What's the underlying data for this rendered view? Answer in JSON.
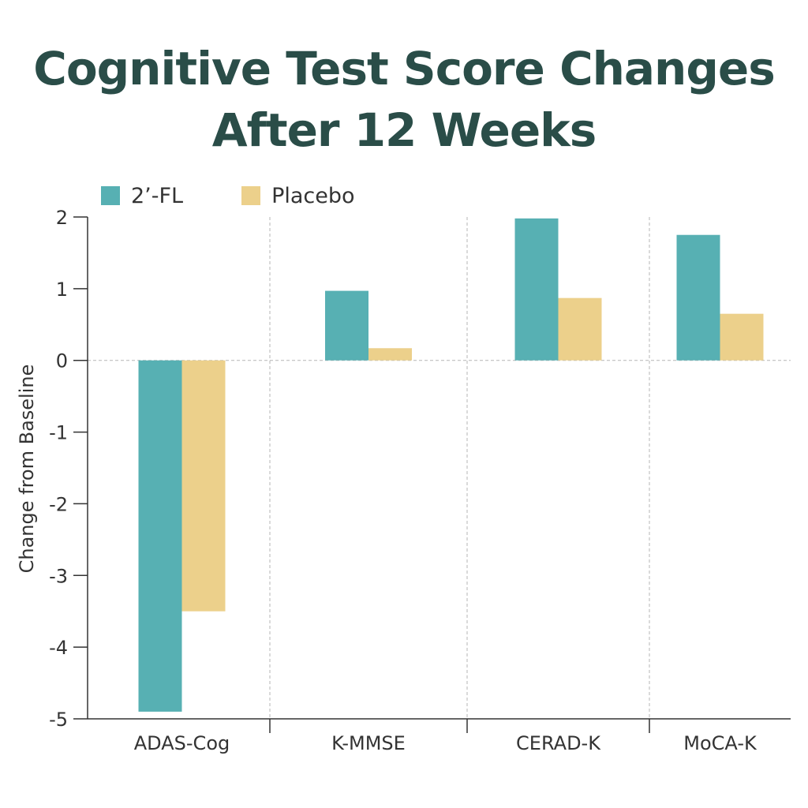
{
  "title_line1": "Cognitive Test Score Changes",
  "title_line2": "After 12 Weeks",
  "colors": {
    "title": "#2a4d48",
    "axis": "#333333",
    "grid": "#b5b5b5"
  },
  "chart_data": {
    "type": "bar",
    "categories": [
      "ADAS-Cog",
      "K-MMSE",
      "CERAD-K",
      "MoCA-K"
    ],
    "series": [
      {
        "name": "2’-FL",
        "color": "#57b0b3",
        "values": [
          -4.9,
          0.97,
          1.98,
          1.75
        ]
      },
      {
        "name": "Placebo",
        "color": "#ecd08b",
        "values": [
          -3.5,
          0.17,
          0.87,
          0.65
        ]
      }
    ],
    "ylabel": "Change from Baseline",
    "ylim": [
      -5,
      2
    ],
    "yticks": [
      2,
      1,
      0,
      -1,
      -2,
      -3,
      -4,
      -5
    ],
    "ytick_labels": [
      "2",
      "1",
      "0",
      "-1",
      "-2",
      "-3",
      "-4",
      "-5"
    ],
    "grid": "dashed-vertical-and-zero-line",
    "legend_position": "top-left"
  }
}
